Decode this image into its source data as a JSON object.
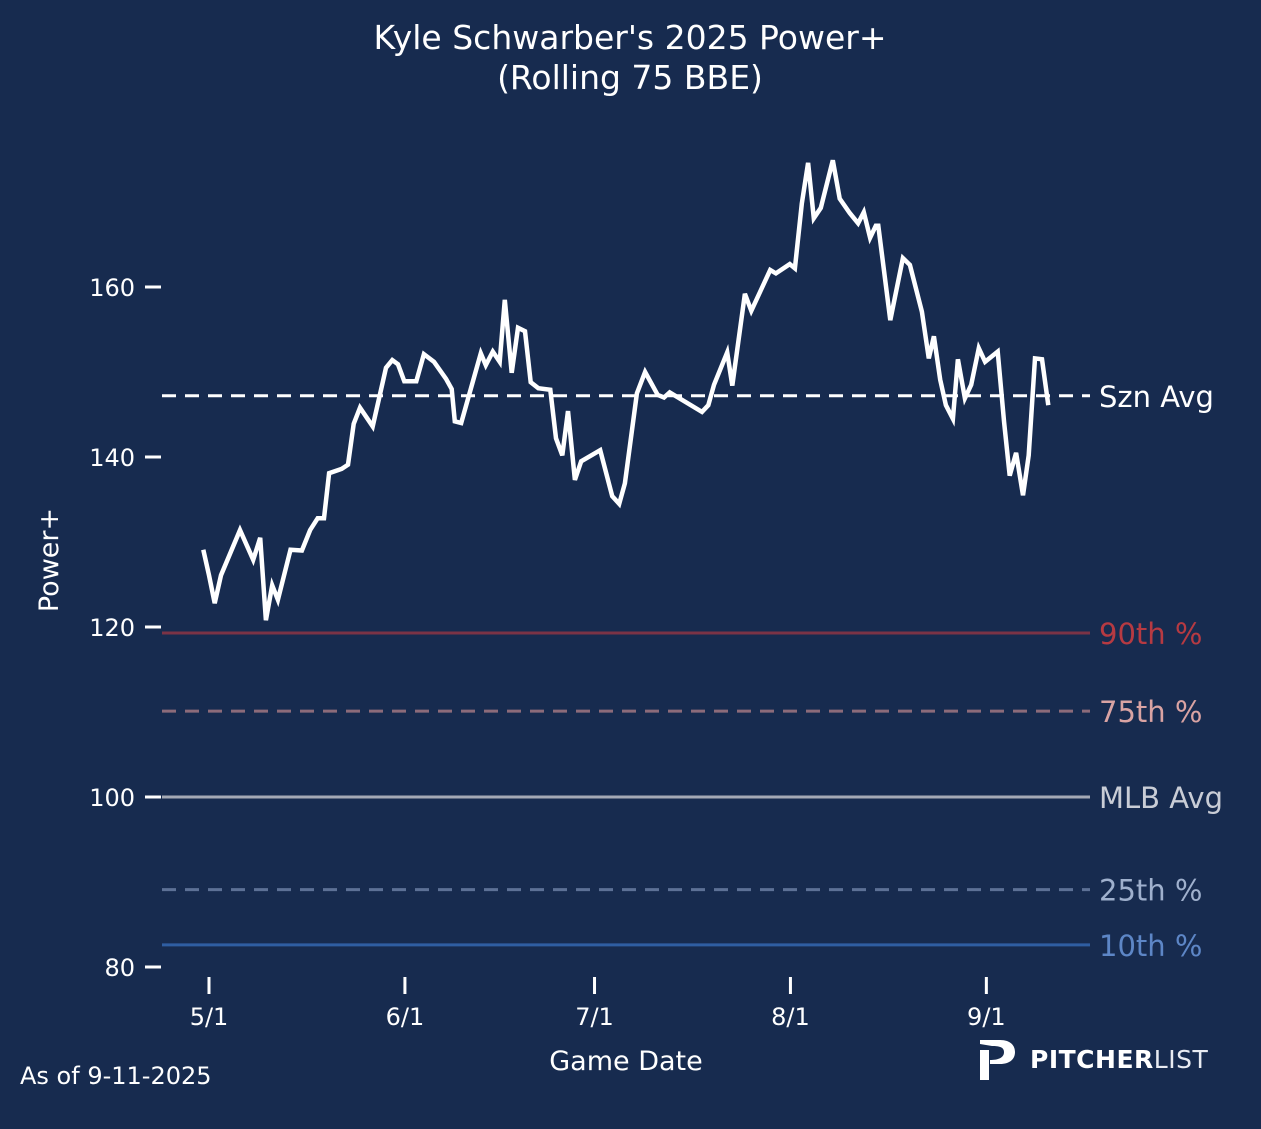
{
  "chart_data": {
    "type": "line",
    "title_line1": "Kyle Schwarber's 2025 Power+",
    "title_line2": "(Rolling 75 BBE)",
    "xlabel": "Game Date",
    "ylabel": "Power+",
    "x_unit": "days since 5/1/2025",
    "x_ticks": [
      {
        "label": "5/1",
        "day": 0
      },
      {
        "label": "6/1",
        "day": 31
      },
      {
        "label": "7/1",
        "day": 61
      },
      {
        "label": "8/1",
        "day": 92
      },
      {
        "label": "9/1",
        "day": 123
      }
    ],
    "y_ticks": [
      80,
      100,
      120,
      140,
      160
    ],
    "ylim": [
      80,
      180
    ],
    "xlim": [
      -7,
      140
    ],
    "grid": false,
    "series": [
      {
        "name": "Power+ (Rolling 75 BBE)",
        "color": "#ffffff",
        "x": [
          -0.9,
          0,
          0.9,
          1.9,
          4.9,
          7.0,
          8.1,
          9.0,
          10.0,
          10.9,
          12.9,
          14.7,
          16.0,
          17.2,
          18.2,
          19.0,
          21.0,
          22.0,
          22.9,
          23.9,
          25.9,
          28.0,
          29.0,
          29.9,
          30.9,
          32.8,
          34.0,
          35.6,
          37.5,
          38.4,
          38.9,
          39.9,
          43.0,
          43.8,
          44.9,
          46.0,
          46.8,
          47.9,
          48.9,
          50.0,
          50.9,
          52.1,
          54.0,
          54.9,
          55.9,
          56.8,
          57.9,
          58.9,
          61.9,
          63.8,
          64.9,
          65.8,
          67.7,
          69.0,
          71.0,
          72.0,
          72.9,
          78.0,
          79.0,
          79.9,
          82.0,
          82.8,
          84.8,
          85.8,
          88.8,
          89.7,
          91.9,
          92.7,
          93.8,
          94.8,
          95.7,
          96.8,
          98.7,
          99.8,
          101.4,
          102.7,
          103.6,
          104.6,
          105.5,
          105.9,
          107.8,
          109.8,
          110.9,
          112.8,
          113.9,
          114.7,
          115.7,
          116.6,
          117.7,
          118.5,
          119.6,
          120.6,
          121.8,
          122.8,
          124.8,
          125.8,
          126.7,
          127.7,
          128.8,
          129.7,
          130.7,
          131.8,
          132.8
        ],
        "y": [
          129.1,
          126.1,
          122.8,
          126.1,
          131.4,
          127.9,
          130.5,
          120.8,
          124.9,
          123.2,
          129.1,
          129.0,
          131.4,
          132.8,
          132.8,
          138.1,
          138.6,
          139.1,
          143.9,
          145.8,
          143.6,
          150.5,
          151.4,
          150.9,
          148.9,
          148.9,
          152.1,
          151.2,
          149.2,
          148.0,
          144.2,
          144.0,
          152.2,
          150.8,
          152.4,
          151.2,
          158.5,
          149.9,
          155.2,
          154.8,
          148.8,
          148.1,
          147.9,
          142.2,
          140.2,
          145.4,
          137.3,
          139.5,
          140.8,
          135.4,
          134.5,
          136.9,
          147.5,
          150.0,
          147.3,
          147.0,
          147.6,
          145.3,
          146.1,
          148.5,
          152.3,
          148.4,
          159.2,
          157.2,
          162.0,
          161.6,
          162.7,
          162.2,
          169.8,
          174.6,
          168.1,
          169.3,
          174.9,
          170.4,
          168.7,
          167.5,
          168.8,
          165.8,
          167.2,
          167.2,
          156.1,
          163.4,
          162.6,
          157.1,
          151.6,
          154.2,
          149.1,
          146.1,
          144.5,
          151.5,
          146.9,
          148.5,
          152.8,
          151.2,
          152.4,
          144.1,
          137.8,
          140.5,
          135.5,
          140.2,
          151.6,
          151.5,
          146.1
        ]
      }
    ],
    "reference_lines": [
      {
        "label": "Szn Avg",
        "value": 147.2,
        "style": "dashed",
        "line_color": "#ffffff",
        "label_color": "#ffffff"
      },
      {
        "label": "90th %",
        "value": 119.3,
        "style": "solid",
        "line_color": "#7b3346",
        "label_color": "#b63a42"
      },
      {
        "label": "75th %",
        "value": 110.1,
        "style": "dashed",
        "line_color": "#8c6b7a",
        "label_color": "#d9a3a3"
      },
      {
        "label": "MLB Avg",
        "value": 100,
        "style": "solid",
        "line_color": "#a4a9b5",
        "label_color": "#c9cdd6"
      },
      {
        "label": "25th %",
        "value": 89.1,
        "style": "dashed",
        "line_color": "#5d7196",
        "label_color": "#9fb0cd"
      },
      {
        "label": "10th %",
        "value": 82.6,
        "style": "solid",
        "line_color": "#2f5ea2",
        "label_color": "#5d86c6"
      }
    ]
  },
  "footer": {
    "as_of": "As of 9-11-2025"
  },
  "logo": {
    "text_bold": "PITCHER",
    "text_light": "LIST"
  },
  "colors": {
    "background": "#172b4f"
  }
}
